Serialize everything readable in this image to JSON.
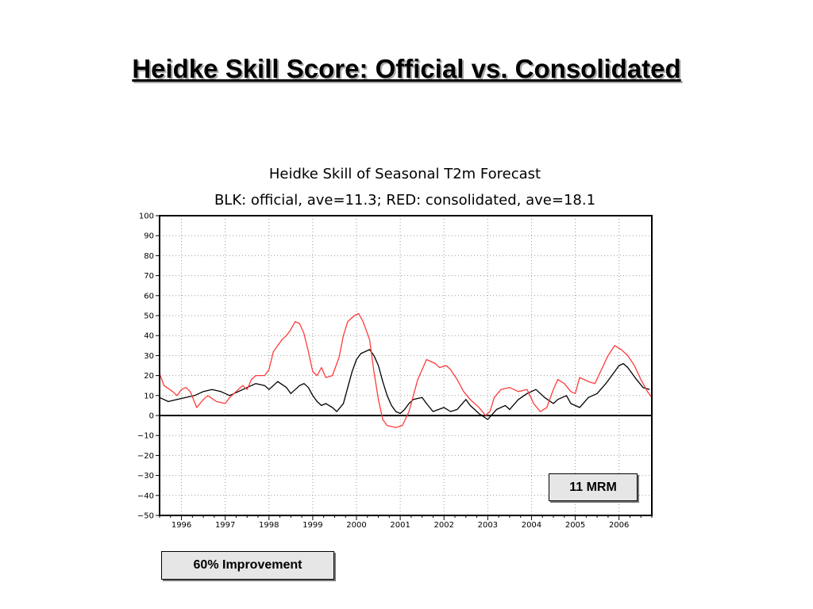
{
  "slide": {
    "title": "Heidke Skill Score: Official vs. Consolidated",
    "box_mrm": "11 MRM",
    "box_improvement": "60% Improvement"
  },
  "chart_data": {
    "type": "line",
    "title": "Heidke Skill of Seasonal T2m Forecast",
    "subtitle": "BLK: official, ave=11.3; RED: consolidated, ave=18.1",
    "xlabel": "",
    "ylabel": "",
    "xlim": [
      1995.5,
      2006.75
    ],
    "ylim": [
      -50,
      100
    ],
    "yticks": [
      100,
      90,
      80,
      70,
      60,
      50,
      40,
      30,
      20,
      10,
      0,
      -10,
      -20,
      -30,
      -40,
      -50
    ],
    "ytick_labels": [
      "100",
      "90",
      "80",
      "70",
      "60",
      "50",
      "40",
      "30",
      "20",
      "10",
      "0",
      "−10",
      "−20",
      "−30",
      "−40",
      "−50"
    ],
    "xticks": [
      1996,
      1997,
      1998,
      1999,
      2000,
      2001,
      2002,
      2003,
      2004,
      2005,
      2006
    ],
    "xtick_labels": [
      "1996",
      "1997",
      "1998",
      "1999",
      "2000",
      "2001",
      "2002",
      "2003",
      "2004",
      "2005",
      "2006"
    ],
    "grid": true,
    "legend": "none",
    "zero_line": true,
    "colors": {
      "official": "#000000",
      "consolidated": "#ff3b3b"
    },
    "series": [
      {
        "color": "#000000",
        "points": [
          [
            1995.5,
            9
          ],
          [
            1995.7,
            7
          ],
          [
            1995.9,
            8
          ],
          [
            1996.1,
            9
          ],
          [
            1996.3,
            10
          ],
          [
            1996.5,
            12
          ],
          [
            1996.7,
            13
          ],
          [
            1996.9,
            12
          ],
          [
            1997.1,
            10
          ],
          [
            1997.3,
            12
          ],
          [
            1997.5,
            14
          ],
          [
            1997.7,
            16
          ],
          [
            1997.9,
            15
          ],
          [
            1998.0,
            13
          ],
          [
            1998.2,
            17
          ],
          [
            1998.4,
            14
          ],
          [
            1998.5,
            11
          ],
          [
            1998.7,
            15
          ],
          [
            1998.8,
            16
          ],
          [
            1998.9,
            14
          ],
          [
            1999.0,
            10
          ],
          [
            1999.1,
            7
          ],
          [
            1999.2,
            5
          ],
          [
            1999.3,
            6
          ],
          [
            1999.45,
            4
          ],
          [
            1999.55,
            2
          ],
          [
            1999.7,
            6
          ],
          [
            1999.8,
            14
          ],
          [
            1999.9,
            22
          ],
          [
            2000.0,
            28
          ],
          [
            2000.1,
            31
          ],
          [
            2000.2,
            32
          ],
          [
            2000.3,
            33
          ],
          [
            2000.4,
            30
          ],
          [
            2000.5,
            25
          ],
          [
            2000.6,
            17
          ],
          [
            2000.7,
            10
          ],
          [
            2000.8,
            5
          ],
          [
            2000.9,
            2
          ],
          [
            2001.0,
            1
          ],
          [
            2001.1,
            3
          ],
          [
            2001.2,
            6
          ],
          [
            2001.3,
            8
          ],
          [
            2001.5,
            9
          ],
          [
            2001.6,
            6
          ],
          [
            2001.75,
            2
          ],
          [
            2002.0,
            4
          ],
          [
            2002.15,
            2
          ],
          [
            2002.3,
            3
          ],
          [
            2002.5,
            8
          ],
          [
            2002.6,
            5
          ],
          [
            2002.8,
            1
          ],
          [
            2003.0,
            -2
          ],
          [
            2003.2,
            3
          ],
          [
            2003.4,
            5
          ],
          [
            2003.5,
            3
          ],
          [
            2003.7,
            8
          ],
          [
            2003.9,
            11
          ],
          [
            2004.1,
            13
          ],
          [
            2004.3,
            9
          ],
          [
            2004.5,
            6
          ],
          [
            2004.6,
            8
          ],
          [
            2004.8,
            10
          ],
          [
            2004.9,
            6
          ],
          [
            2005.1,
            4
          ],
          [
            2005.3,
            9
          ],
          [
            2005.5,
            11
          ],
          [
            2005.7,
            16
          ],
          [
            2005.9,
            22
          ],
          [
            2006.0,
            25
          ],
          [
            2006.1,
            26
          ],
          [
            2006.2,
            24
          ],
          [
            2006.4,
            18
          ],
          [
            2006.55,
            14
          ],
          [
            2006.7,
            13
          ]
        ]
      },
      {
        "color": "#ff3b3b",
        "points": [
          [
            1995.5,
            21
          ],
          [
            1995.6,
            15
          ],
          [
            1995.8,
            12
          ],
          [
            1995.9,
            10
          ],
          [
            1996.0,
            13
          ],
          [
            1996.1,
            14
          ],
          [
            1996.2,
            12
          ],
          [
            1996.35,
            4
          ],
          [
            1996.5,
            8
          ],
          [
            1996.6,
            10
          ],
          [
            1996.8,
            7
          ],
          [
            1997.0,
            6
          ],
          [
            1997.1,
            9
          ],
          [
            1997.3,
            13
          ],
          [
            1997.4,
            15
          ],
          [
            1997.5,
            13
          ],
          [
            1997.6,
            18
          ],
          [
            1997.7,
            20
          ],
          [
            1997.9,
            20
          ],
          [
            1998.0,
            23
          ],
          [
            1998.1,
            32
          ],
          [
            1998.3,
            38
          ],
          [
            1998.4,
            40
          ],
          [
            1998.5,
            43
          ],
          [
            1998.6,
            47
          ],
          [
            1998.7,
            46
          ],
          [
            1998.8,
            41
          ],
          [
            1998.9,
            32
          ],
          [
            1999.0,
            22
          ],
          [
            1999.1,
            20
          ],
          [
            1999.2,
            24
          ],
          [
            1999.3,
            19
          ],
          [
            1999.45,
            20
          ],
          [
            1999.6,
            29
          ],
          [
            1999.7,
            40
          ],
          [
            1999.8,
            47
          ],
          [
            1999.95,
            50
          ],
          [
            2000.05,
            51
          ],
          [
            2000.15,
            47
          ],
          [
            2000.3,
            38
          ],
          [
            2000.4,
            22
          ],
          [
            2000.5,
            8
          ],
          [
            2000.6,
            -2
          ],
          [
            2000.7,
            -5
          ],
          [
            2000.9,
            -6
          ],
          [
            2001.05,
            -5
          ],
          [
            2001.2,
            2
          ],
          [
            2001.3,
            10
          ],
          [
            2001.4,
            18
          ],
          [
            2001.5,
            23
          ],
          [
            2001.6,
            28
          ],
          [
            2001.8,
            26
          ],
          [
            2001.9,
            24
          ],
          [
            2002.05,
            25
          ],
          [
            2002.15,
            23
          ],
          [
            2002.3,
            18
          ],
          [
            2002.45,
            12
          ],
          [
            2002.6,
            8
          ],
          [
            2002.8,
            4
          ],
          [
            2002.95,
            0
          ],
          [
            2003.05,
            2
          ],
          [
            2003.15,
            9
          ],
          [
            2003.3,
            13
          ],
          [
            2003.5,
            14
          ],
          [
            2003.7,
            12
          ],
          [
            2003.9,
            13
          ],
          [
            2004.05,
            6
          ],
          [
            2004.2,
            2
          ],
          [
            2004.35,
            4
          ],
          [
            2004.5,
            13
          ],
          [
            2004.6,
            18
          ],
          [
            2004.75,
            16
          ],
          [
            2004.9,
            12
          ],
          [
            2005.0,
            11
          ],
          [
            2005.1,
            19
          ],
          [
            2005.3,
            17
          ],
          [
            2005.45,
            16
          ],
          [
            2005.6,
            23
          ],
          [
            2005.75,
            30
          ],
          [
            2005.9,
            35
          ],
          [
            2006.05,
            33
          ],
          [
            2006.2,
            30
          ],
          [
            2006.35,
            25
          ],
          [
            2006.5,
            18
          ],
          [
            2006.65,
            12
          ],
          [
            2006.75,
            9
          ]
        ]
      }
    ]
  }
}
